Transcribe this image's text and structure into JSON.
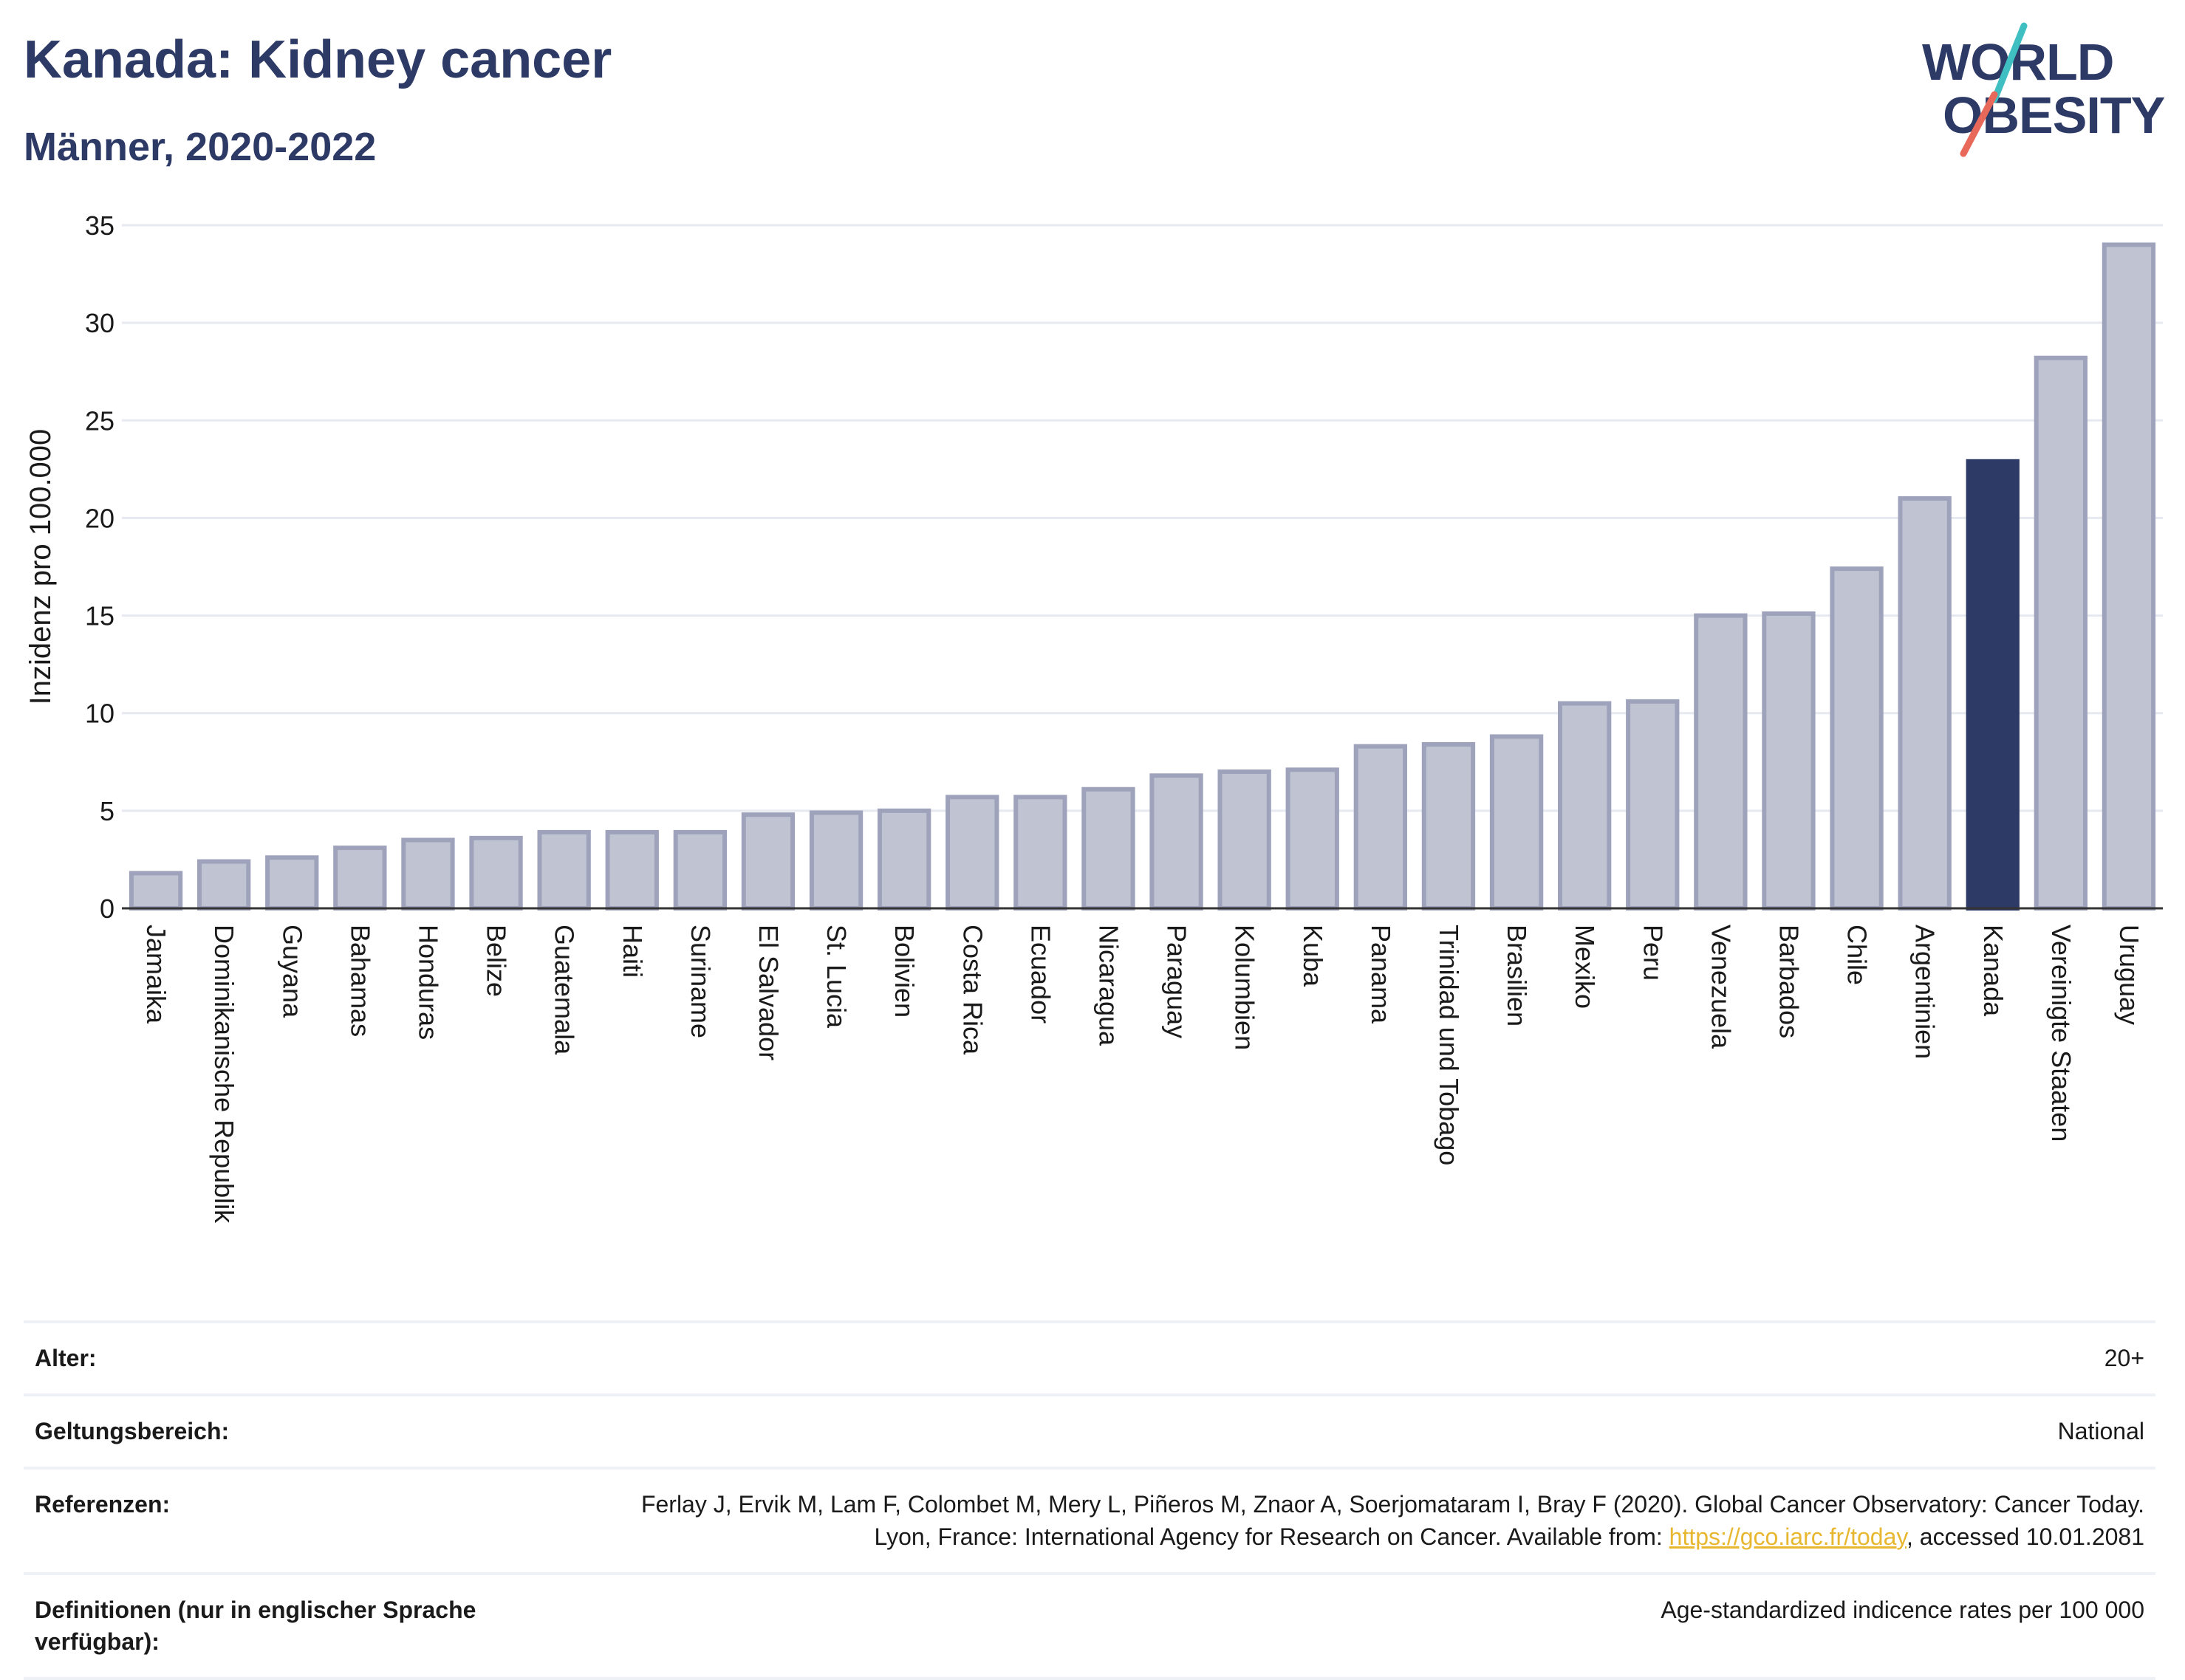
{
  "header": {
    "title": "Kanada: Kidney cancer",
    "subtitle": "Männer, 2020-2022"
  },
  "logo": {
    "line1": "WORLD",
    "line2": "OBESITY",
    "slash_colors": [
      "#3fbfc2",
      "#e8685a"
    ]
  },
  "colors": {
    "bar": "#c0c3d1",
    "bar_border": "#9ea3bb",
    "highlight": "#2d3a66",
    "grid": "#e6e9f0",
    "axis": "#333333"
  },
  "chart_data": {
    "type": "bar",
    "title": "Kanada: Kidney cancer",
    "subtitle": "Männer, 2020-2022",
    "ylabel": "Inzidenz pro 100.000",
    "xlabel": "",
    "ylim": [
      0,
      35
    ],
    "yticks": [
      0,
      5,
      10,
      15,
      20,
      25,
      30,
      35
    ],
    "grid": true,
    "highlight": "Kanada",
    "categories": [
      "Jamaika",
      "Dominikanische Republik",
      "Guyana",
      "Bahamas",
      "Honduras",
      "Belize",
      "Guatemala",
      "Haiti",
      "Suriname",
      "El Salvador",
      "St. Lucia",
      "Bolivien",
      "Costa Rica",
      "Ecuador",
      "Nicaragua",
      "Paraguay",
      "Kolumbien",
      "Kuba",
      "Panama",
      "Trinidad und Tobago",
      "Brasilien",
      "Mexiko",
      "Peru",
      "Venezuela",
      "Barbados",
      "Chile",
      "Argentinien",
      "Kanada",
      "Vereinigte Staaten",
      "Uruguay"
    ],
    "values": [
      1.8,
      2.4,
      2.6,
      3.1,
      3.5,
      3.6,
      3.9,
      3.9,
      3.9,
      4.8,
      4.9,
      5.0,
      5.7,
      5.7,
      6.1,
      6.8,
      7.0,
      7.1,
      8.3,
      8.4,
      8.8,
      10.5,
      10.6,
      15.0,
      15.1,
      17.4,
      21.0,
      22.9,
      28.2,
      34.0
    ]
  },
  "meta": {
    "age_label": "Alter:",
    "age_value": "20+",
    "scope_label": "Geltungsbereich:",
    "scope_value": "National",
    "ref_label": "Referenzen:",
    "ref_text_1": "Ferlay J, Ervik M, Lam F, Colombet M, Mery L, Piñeros M, Znaor A, Soerjomataram I, Bray F (2020). Global Cancer Observatory: Cancer Today. Lyon, France: International Agency for Research on Cancer. Available from: ",
    "ref_link": "https://gco.iarc.fr/today",
    "ref_text_2": ", accessed 10.01.2081",
    "def_label": "Definitionen (nur in englischer Sprache verfügbar):",
    "def_value": "Age-standardized indicence rates per 100 000"
  }
}
